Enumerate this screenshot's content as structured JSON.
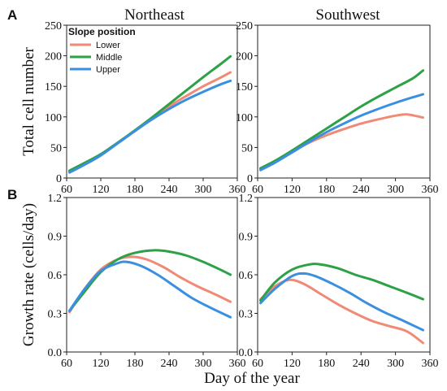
{
  "figure": {
    "ylabel_top": "Total cell number",
    "ylabel_bottom": "Growth rate (cells/day)",
    "xlabel": "Day of the year"
  },
  "legend": {
    "title": "Slope position",
    "placement": "top-left of panel A Northeast",
    "entries": [
      "Lower",
      "Middle",
      "Upper"
    ]
  },
  "colors": {
    "Lower": "#f08a76",
    "Middle": "#2ca146",
    "Upper": "#3b8fe0"
  },
  "chart_data": [
    {
      "type": "line",
      "panel_label": "A",
      "title": "Northeast",
      "xlim": [
        60,
        360
      ],
      "ylim": [
        0,
        250
      ],
      "xticks": [
        60,
        120,
        180,
        240,
        300,
        360
      ],
      "yticks": [
        0,
        50,
        100,
        150,
        200,
        250
      ],
      "grid": false,
      "series": [
        {
          "name": "Lower",
          "x": [
            65,
            90,
            120,
            150,
            180,
            210,
            240,
            270,
            300,
            330,
            348
          ],
          "values": [
            10,
            22,
            38,
            57,
            77,
            97,
            117,
            134,
            150,
            164,
            173
          ]
        },
        {
          "name": "Middle",
          "x": [
            65,
            90,
            120,
            150,
            180,
            210,
            240,
            270,
            300,
            330,
            348
          ],
          "values": [
            12,
            24,
            39,
            58,
            78,
            99,
            121,
            143,
            165,
            186,
            199
          ]
        },
        {
          "name": "Upper",
          "x": [
            65,
            90,
            120,
            150,
            180,
            210,
            240,
            270,
            300,
            330,
            348
          ],
          "values": [
            9,
            21,
            37,
            57,
            77,
            96,
            113,
            128,
            141,
            153,
            159
          ]
        }
      ]
    },
    {
      "type": "line",
      "title": "Southwest",
      "xlim": [
        60,
        360
      ],
      "ylim": [
        0,
        250
      ],
      "xticks": [
        60,
        120,
        180,
        240,
        300,
        360
      ],
      "yticks": [
        0,
        50,
        100,
        150,
        200,
        250
      ],
      "grid": false,
      "series": [
        {
          "name": "Lower",
          "x": [
            65,
            90,
            120,
            150,
            180,
            210,
            240,
            270,
            300,
            320,
            348
          ],
          "values": [
            15,
            27,
            43,
            58,
            70,
            80,
            89,
            96,
            102,
            104,
            99
          ]
        },
        {
          "name": "Middle",
          "x": [
            65,
            90,
            120,
            150,
            180,
            210,
            240,
            270,
            300,
            330,
            348
          ],
          "values": [
            16,
            28,
            45,
            63,
            81,
            99,
            117,
            133,
            148,
            163,
            176
          ]
        },
        {
          "name": "Upper",
          "x": [
            65,
            90,
            120,
            150,
            180,
            210,
            240,
            270,
            300,
            330,
            348
          ],
          "values": [
            13,
            25,
            42,
            59,
            75,
            89,
            102,
            113,
            123,
            132,
            137
          ]
        }
      ]
    },
    {
      "type": "line",
      "panel_label": "B",
      "xlim": [
        60,
        360
      ],
      "ylim": [
        0.0,
        1.2
      ],
      "xticks": [
        60,
        120,
        180,
        240,
        300,
        360
      ],
      "yticks": [
        0.0,
        0.3,
        0.6,
        0.9,
        1.2
      ],
      "ytick_labels": [
        "0.0",
        "0.3",
        "0.6",
        "0.9",
        "1.2"
      ],
      "grid": false,
      "series": [
        {
          "name": "Lower",
          "x": [
            65,
            90,
            120,
            150,
            175,
            200,
            230,
            260,
            290,
            320,
            348
          ],
          "values": [
            0.31,
            0.48,
            0.64,
            0.72,
            0.74,
            0.72,
            0.66,
            0.58,
            0.51,
            0.45,
            0.39
          ]
        },
        {
          "name": "Middle",
          "x": [
            65,
            90,
            120,
            150,
            180,
            215,
            240,
            270,
            300,
            330,
            348
          ],
          "values": [
            0.32,
            0.46,
            0.62,
            0.72,
            0.77,
            0.79,
            0.78,
            0.75,
            0.7,
            0.64,
            0.6
          ]
        },
        {
          "name": "Upper",
          "x": [
            65,
            90,
            120,
            150,
            165,
            190,
            220,
            250,
            280,
            310,
            348
          ],
          "values": [
            0.32,
            0.48,
            0.63,
            0.69,
            0.7,
            0.67,
            0.6,
            0.51,
            0.42,
            0.35,
            0.27
          ]
        }
      ]
    },
    {
      "type": "line",
      "xlim": [
        60,
        360
      ],
      "ylim": [
        0.0,
        1.2
      ],
      "xticks": [
        60,
        120,
        180,
        240,
        300,
        360
      ],
      "yticks": [
        0.0,
        0.3,
        0.6,
        0.9,
        1.2
      ],
      "ytick_labels": [
        "0.0",
        "0.3",
        "0.6",
        "0.9",
        "1.2"
      ],
      "grid": false,
      "series": [
        {
          "name": "Lower",
          "x": [
            65,
            90,
            115,
            140,
            170,
            200,
            230,
            260,
            290,
            320,
            348
          ],
          "values": [
            0.41,
            0.51,
            0.56,
            0.53,
            0.45,
            0.37,
            0.3,
            0.24,
            0.2,
            0.16,
            0.07
          ]
        },
        {
          "name": "Middle",
          "x": [
            65,
            90,
            120,
            150,
            170,
            200,
            230,
            260,
            290,
            320,
            348
          ],
          "values": [
            0.4,
            0.54,
            0.64,
            0.68,
            0.68,
            0.65,
            0.6,
            0.56,
            0.51,
            0.46,
            0.41
          ]
        },
        {
          "name": "Upper",
          "x": [
            65,
            90,
            120,
            140,
            160,
            190,
            220,
            250,
            280,
            310,
            348
          ],
          "values": [
            0.38,
            0.49,
            0.59,
            0.61,
            0.59,
            0.53,
            0.46,
            0.38,
            0.31,
            0.25,
            0.17
          ]
        }
      ]
    }
  ]
}
